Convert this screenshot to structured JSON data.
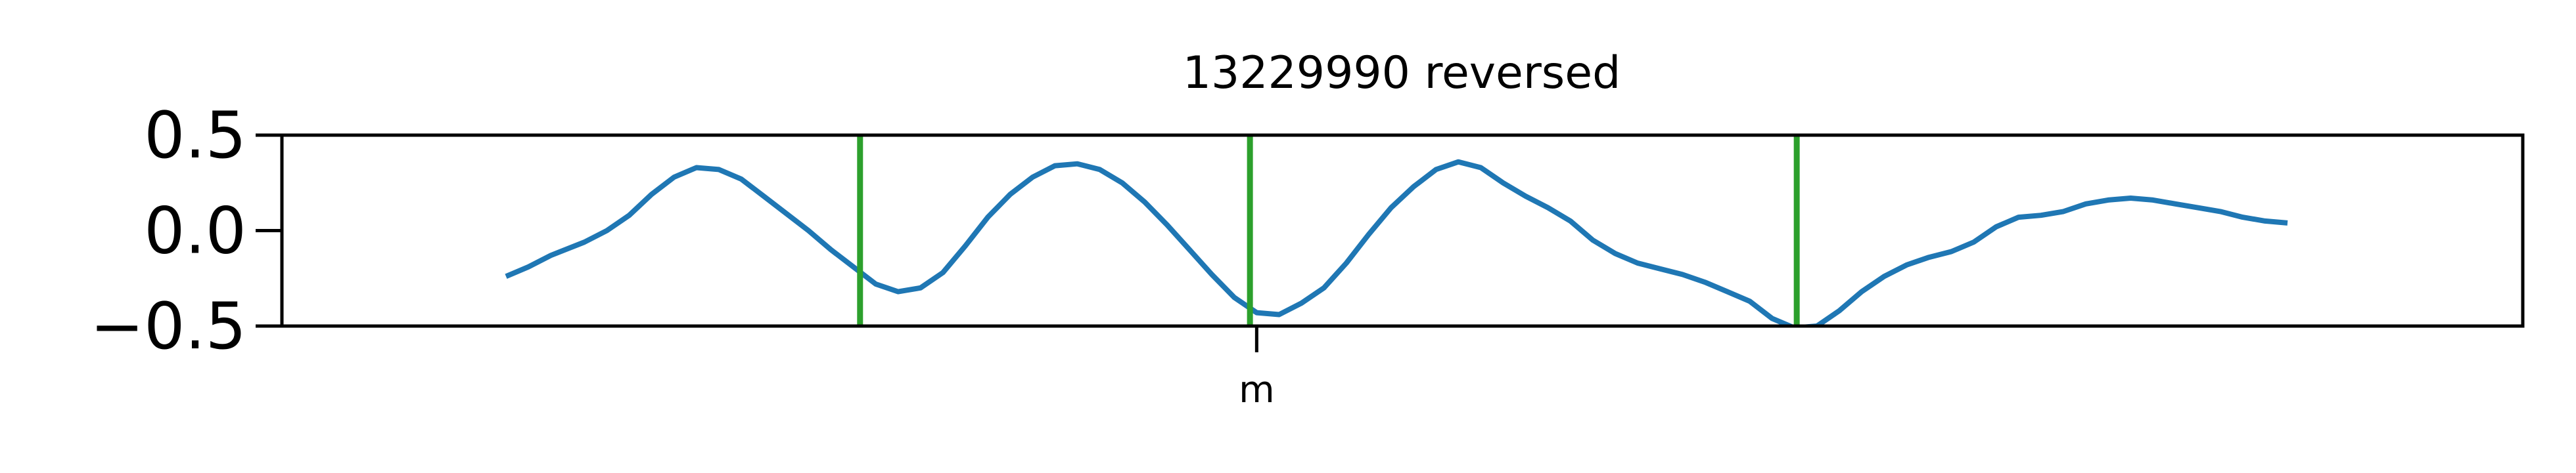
{
  "chart_data": {
    "type": "line",
    "title": "13229990 reversed",
    "xlabel": "",
    "ylabel": "",
    "ylim": [
      -0.5,
      0.5
    ],
    "yticks": [
      {
        "value": 0.5,
        "label": "0.5"
      },
      {
        "value": 0.0,
        "label": "0.0"
      },
      {
        "value": -0.5,
        "label": "−0.5"
      }
    ],
    "xlim": [
      0,
      100
    ],
    "xticks": [
      {
        "value": 43.5,
        "label": "m"
      }
    ],
    "grid": false,
    "series": [
      {
        "color": "#1f77b4",
        "x": [
          10,
          11,
          12,
          13.5,
          14.5,
          15.5,
          16.5,
          17.5,
          18.5,
          19.5,
          20.5,
          21.5,
          22.5,
          23.5,
          24.5,
          25.5,
          26.5,
          27.5,
          28.5,
          29.5,
          30.5,
          31.5,
          32.5,
          33.5,
          34.5,
          35.5,
          36.5,
          37.5,
          38.5,
          39.5,
          40.5,
          41.5,
          42.5,
          43.5,
          44.5,
          45.5,
          46.5,
          47.5,
          48.5,
          49.5,
          50.5,
          51.5,
          52.5,
          53.5,
          54.5,
          55.5,
          56.5,
          57.5,
          58.5,
          59.5,
          60.5,
          61.5,
          62.5,
          63.5,
          64.5,
          65.5,
          66.5,
          67.5,
          68.5,
          69.5,
          70.5,
          71.5,
          72.5,
          73.5,
          74.5,
          75.5,
          76.5,
          77.5,
          78.5,
          79.5,
          80.5,
          81.5,
          82.5,
          83.5,
          84.5,
          85.5,
          86.5,
          87.5,
          88.5,
          89.5
        ],
        "y": [
          -0.24,
          -0.19,
          -0.13,
          -0.06,
          0.0,
          0.08,
          0.19,
          0.28,
          0.33,
          0.32,
          0.27,
          0.18,
          0.09,
          0.0,
          -0.1,
          -0.19,
          -0.28,
          -0.32,
          -0.3,
          -0.22,
          -0.08,
          0.07,
          0.19,
          0.28,
          0.34,
          0.35,
          0.32,
          0.25,
          0.15,
          0.03,
          -0.1,
          -0.23,
          -0.35,
          -0.43,
          -0.44,
          -0.38,
          -0.3,
          -0.17,
          -0.02,
          0.12,
          0.23,
          0.32,
          0.36,
          0.33,
          0.25,
          0.18,
          0.12,
          0.05,
          -0.05,
          -0.12,
          -0.17,
          -0.2,
          -0.23,
          -0.27,
          -0.32,
          -0.37,
          -0.46,
          -0.51,
          -0.5,
          -0.42,
          -0.32,
          -0.24,
          -0.18,
          -0.14,
          -0.11,
          -0.06,
          0.02,
          0.07,
          0.08,
          0.1,
          0.14,
          0.16,
          0.17,
          0.16,
          0.14,
          0.12,
          0.1,
          0.07,
          0.05,
          0.04
        ]
      }
    ],
    "vlines": [
      {
        "x": 25.8,
        "color": "#2ca02c"
      },
      {
        "x": 43.2,
        "color": "#2ca02c"
      },
      {
        "x": 67.6,
        "color": "#2ca02c"
      }
    ]
  }
}
